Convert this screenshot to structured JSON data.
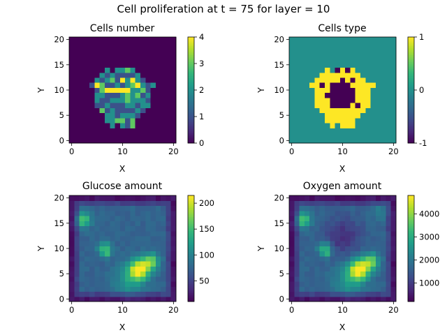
{
  "figure": {
    "title": "Cell proliferation at t = 75 for layer = 10"
  },
  "chart_data": [
    {
      "type": "heatmap",
      "title": "Cells number",
      "xlabel": "X",
      "ylabel": "Y",
      "xticks": [
        "0",
        "10",
        "20"
      ],
      "yticks": [
        "0",
        "5",
        "10",
        "15",
        "20"
      ],
      "xlim": [
        -0.5,
        20.5
      ],
      "ylim": [
        -0.5,
        20.5
      ],
      "colormap": "viridis",
      "colorbar": {
        "min": 0,
        "max": 4,
        "ticks": [
          "0",
          "1",
          "2",
          "3",
          "4"
        ]
      },
      "grid": false,
      "legend": "none"
    },
    {
      "type": "heatmap",
      "title": "Cells type",
      "xlabel": "X",
      "ylabel": "Y",
      "xticks": [
        "0",
        "10",
        "20"
      ],
      "yticks": [
        "0",
        "5",
        "10",
        "15",
        "20"
      ],
      "xlim": [
        -0.5,
        20.5
      ],
      "ylim": [
        -0.5,
        20.5
      ],
      "colormap": "viridis",
      "colorbar": {
        "min": -1,
        "max": 1,
        "ticks": [
          "-1",
          "0",
          "1"
        ]
      },
      "grid": false,
      "legend": "none"
    },
    {
      "type": "heatmap",
      "title": "Glucose amount",
      "xlabel": "X",
      "ylabel": "Y",
      "xticks": [
        "0",
        "10",
        "20"
      ],
      "yticks": [
        "0",
        "5",
        "10",
        "15",
        "20"
      ],
      "xlim": [
        -0.5,
        20.5
      ],
      "ylim": [
        -0.5,
        20.5
      ],
      "colormap": "viridis",
      "colorbar": {
        "min": 10,
        "max": 215,
        "ticks": [
          "50",
          "100",
          "150",
          "200"
        ]
      },
      "grid": false,
      "legend": "none"
    },
    {
      "type": "heatmap",
      "title": "Oxygen amount",
      "xlabel": "X",
      "ylabel": "Y",
      "xticks": [
        "0",
        "10",
        "20"
      ],
      "yticks": [
        "0",
        "5",
        "10",
        "15",
        "20"
      ],
      "xlim": [
        -0.5,
        20.5
      ],
      "ylim": [
        -0.5,
        20.5
      ],
      "colormap": "viridis",
      "colorbar": {
        "min": 200,
        "max": 4800,
        "ticks": [
          "1000",
          "2000",
          "3000",
          "4000"
        ]
      },
      "grid": false,
      "legend": "none"
    }
  ]
}
